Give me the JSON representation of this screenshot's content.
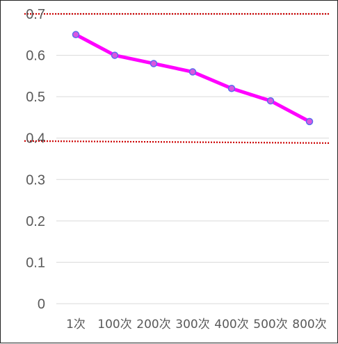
{
  "chart_data": {
    "type": "line",
    "categories": [
      "1次",
      "100次",
      "200次",
      "300次",
      "400次",
      "500次",
      "800次"
    ],
    "series": [
      {
        "values": [
          0.65,
          0.6,
          0.58,
          0.56,
          0.52,
          0.49,
          0.44
        ]
      }
    ],
    "ylim": [
      0,
      0.7
    ],
    "yticks": [
      "0",
      "0.1",
      "0.2",
      "0.3",
      "0.4",
      "0.5",
      "0.6",
      "0.7"
    ],
    "grid": true,
    "reference_lines": [
      0.7,
      0.39
    ],
    "colors": {
      "line": "#ff00ff",
      "marker_fill": "#d957e0",
      "marker_stroke": "#5b6cf0",
      "reference": "#cc0000",
      "grid": "#d9d9d9",
      "text": "#595959"
    }
  }
}
